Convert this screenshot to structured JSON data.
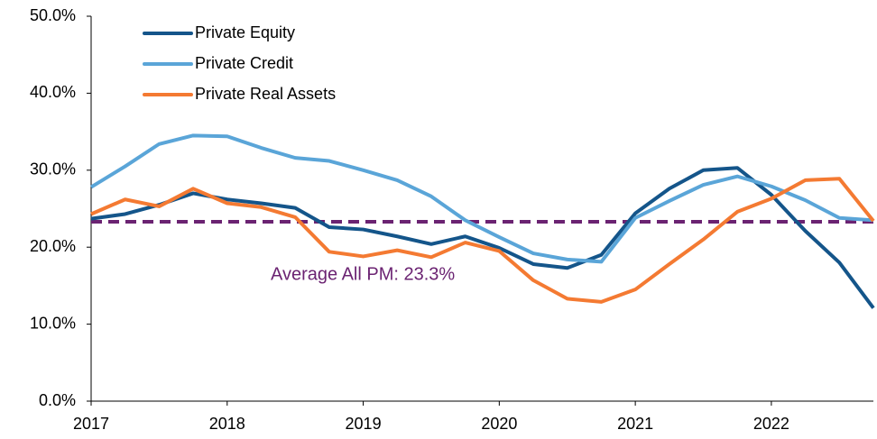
{
  "chart_data": {
    "type": "line",
    "x": [
      2017,
      2017.25,
      2017.5,
      2017.75,
      2018,
      2018.25,
      2018.5,
      2018.75,
      2019,
      2019.25,
      2019.5,
      2019.75,
      2020,
      2020.25,
      2020.5,
      2020.75,
      2021,
      2021.25,
      2021.5,
      2021.75,
      2022,
      2022.25,
      2022.5,
      2022.75
    ],
    "xlim": [
      2017,
      2022.75
    ],
    "xticks": [
      2017,
      2018,
      2019,
      2020,
      2021,
      2022
    ],
    "ylim": [
      0,
      50
    ],
    "yticks": [
      {
        "value": 0,
        "label": "0.0%"
      },
      {
        "value": 10,
        "label": "10.0%"
      },
      {
        "value": 20,
        "label": "20.0%"
      },
      {
        "value": 30,
        "label": "30.0%"
      },
      {
        "value": 40,
        "label": "40.0%"
      },
      {
        "value": 50,
        "label": "50.0%"
      }
    ],
    "grid": false,
    "legend": "upper-left",
    "series": [
      {
        "name": "Private Equity",
        "color": "#14558a",
        "values": [
          23.7,
          24.3,
          25.5,
          27.0,
          26.2,
          25.7,
          25.1,
          22.6,
          22.3,
          21.4,
          20.4,
          21.4,
          19.9,
          17.8,
          17.3,
          19.0,
          24.4,
          27.6,
          30.0,
          30.3,
          26.8,
          22.1,
          18.0,
          12.1
        ]
      },
      {
        "name": "Private Credit",
        "color": "#5aa5d8",
        "values": [
          27.8,
          30.5,
          33.4,
          34.5,
          34.4,
          32.9,
          31.6,
          31.2,
          30.0,
          28.7,
          26.6,
          23.5,
          21.3,
          19.2,
          18.4,
          18.1,
          23.8,
          26.0,
          28.1,
          29.2,
          27.9,
          26.1,
          23.8,
          23.5
        ]
      },
      {
        "name": "Private Real Assets",
        "color": "#f47a32",
        "values": [
          24.3,
          26.2,
          25.3,
          27.6,
          25.7,
          25.2,
          23.9,
          19.4,
          18.8,
          19.6,
          18.7,
          20.6,
          19.5,
          15.7,
          13.3,
          12.9,
          14.5,
          17.8,
          21.0,
          24.6,
          26.3,
          28.7,
          28.9,
          23.4
        ]
      }
    ],
    "average": {
      "value": 23.3,
      "label": "Average All PM: 23.3%",
      "color": "#6b2372"
    }
  }
}
